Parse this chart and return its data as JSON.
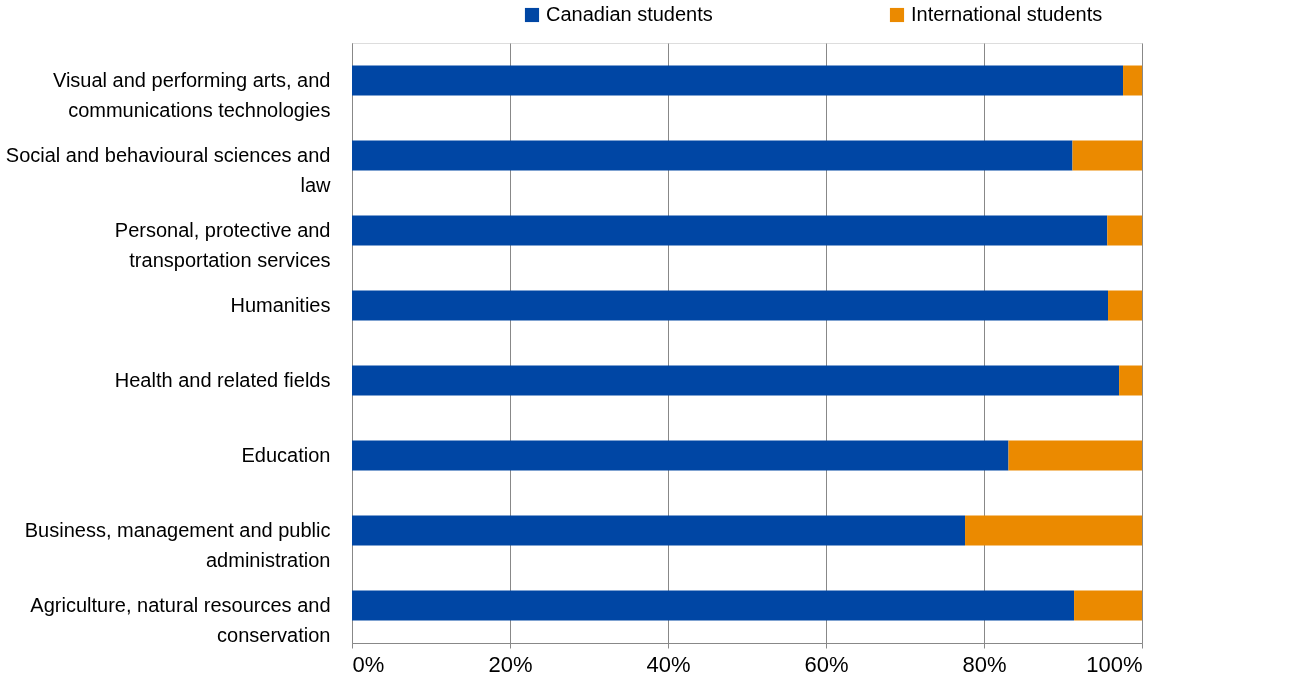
{
  "chart_data": {
    "type": "bar",
    "orientation": "horizontal",
    "stacked": true,
    "categories": [
      "Visual and performing arts, and communications technologies",
      "Social and behavioural sciences and law",
      "Personal, protective and transportation services",
      "Humanities",
      "Health and related fields",
      "Education",
      "Business, management and public administration",
      "Agriculture, natural resources and conservation"
    ],
    "series": [
      {
        "name": "Canadian students",
        "color": "#0046a4",
        "values": [
          97.6,
          91.2,
          95.6,
          95.7,
          97.1,
          83.1,
          77.6,
          91.4
        ]
      },
      {
        "name": "International students",
        "color": "#eb8a00",
        "values": [
          2.4,
          8.8,
          4.4,
          4.3,
          2.9,
          16.9,
          22.4,
          8.6
        ]
      }
    ],
    "xlim": [
      0,
      100
    ],
    "xticks": [
      {
        "value": 0,
        "label": "0%"
      },
      {
        "value": 20,
        "label": "20%"
      },
      {
        "value": 40,
        "label": "40%"
      },
      {
        "value": 60,
        "label": "60%"
      },
      {
        "value": 80,
        "label": "80%"
      },
      {
        "value": 100,
        "label": "100%"
      }
    ],
    "grid": "x",
    "legend": "top"
  }
}
